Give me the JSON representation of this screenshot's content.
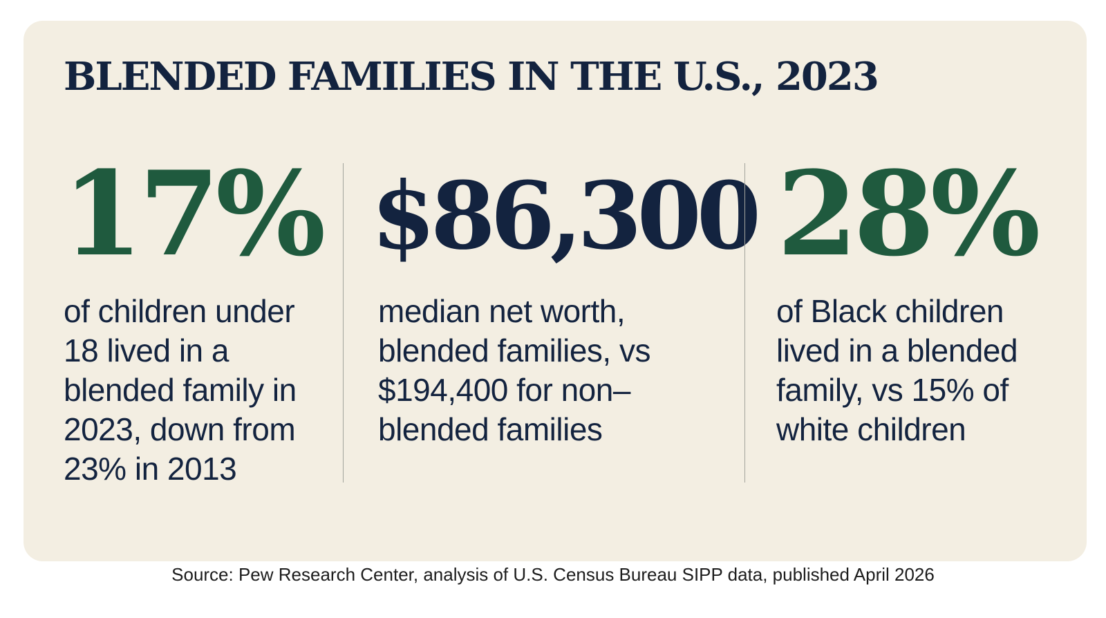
{
  "title": "BLENDED FAMILIES IN THE U.S., 2023",
  "colors": {
    "background": "#f3eee2",
    "title": "#13233f",
    "accent_green": "#1f5a3e",
    "navy": "#13233f"
  },
  "stats": [
    {
      "value": "17%",
      "color": "green",
      "description": "of children under 18 lived in a blended family in 2023, down from 23% in 2013"
    },
    {
      "value": "$86,300",
      "color": "navy",
      "description": "median net worth, blended families, vs $194,400 for non–blended families"
    },
    {
      "value": "28%",
      "color": "green",
      "description": "of Black children lived in a blended family, vs 15% of white children"
    }
  ],
  "source": "Source: Pew Research Center, analysis of U.S. Census Bureau SIPP data, published April 2026"
}
